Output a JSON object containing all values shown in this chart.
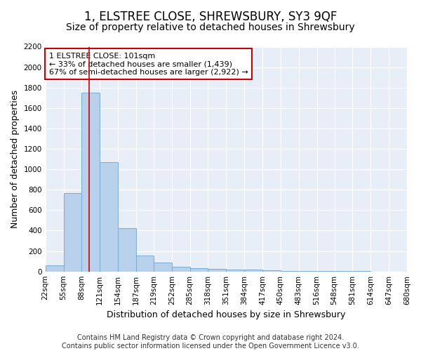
{
  "title": "1, ELSTREE CLOSE, SHREWSBURY, SY3 9QF",
  "subtitle": "Size of property relative to detached houses in Shrewsbury",
  "xlabel": "Distribution of detached houses by size in Shrewsbury",
  "ylabel": "Number of detached properties",
  "bin_edges": [
    22,
    55,
    88,
    121,
    154,
    187,
    219,
    252,
    285,
    318,
    351,
    384,
    417,
    450,
    483,
    516,
    548,
    581,
    614,
    647,
    680
  ],
  "bar_heights": [
    60,
    770,
    1750,
    1070,
    425,
    155,
    85,
    45,
    35,
    25,
    20,
    15,
    10,
    5,
    5,
    3,
    2,
    2,
    1,
    1
  ],
  "bar_color": "#b8d0ea",
  "bar_edge_color": "#7aadd4",
  "property_sqm": 101,
  "red_line_color": "#cc0000",
  "annotation_line1": "1 ELSTREE CLOSE: 101sqm",
  "annotation_line2": "← 33% of detached houses are smaller (1,439)",
  "annotation_line3": "67% of semi-detached houses are larger (2,922) →",
  "annotation_box_color": "white",
  "annotation_box_edge_color": "#cc0000",
  "ylim": [
    0,
    2200
  ],
  "yticks": [
    0,
    200,
    400,
    600,
    800,
    1000,
    1200,
    1400,
    1600,
    1800,
    2000,
    2200
  ],
  "background_color": "#e8eef8",
  "footer_text": "Contains HM Land Registry data © Crown copyright and database right 2024.\nContains public sector information licensed under the Open Government Licence v3.0.",
  "title_fontsize": 12,
  "subtitle_fontsize": 10,
  "axis_label_fontsize": 9,
  "tick_fontsize": 7.5,
  "annotation_fontsize": 8,
  "footer_fontsize": 7
}
